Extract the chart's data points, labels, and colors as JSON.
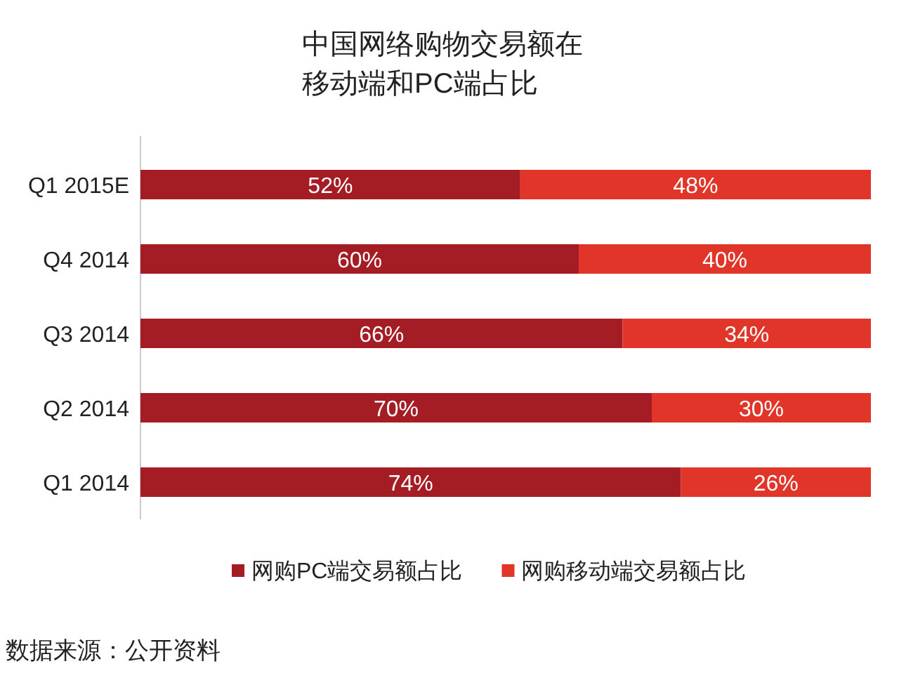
{
  "chart_data": {
    "type": "bar",
    "orientation": "horizontal",
    "stacked": true,
    "title": "中国网络购物交易额在移动端和PC端占比",
    "categories": [
      "Q1 2015E",
      "Q4 2014",
      "Q3 2014",
      "Q2 2014",
      "Q1 2014"
    ],
    "series": [
      {
        "name": "网购PC端交易额占比",
        "color": "#a51d24",
        "values": [
          52,
          60,
          66,
          70,
          74
        ],
        "value_labels": [
          "52%",
          "60%",
          "66%",
          "70%",
          "74%"
        ]
      },
      {
        "name": "网购移动端交易额占比",
        "color": "#e2352a",
        "values": [
          48,
          40,
          34,
          30,
          26
        ],
        "value_labels": [
          "48%",
          "40%",
          "34%",
          "30%",
          "26%"
        ]
      }
    ],
    "legend": "bottom",
    "annotations": [
      "数据来源：公开资料"
    ]
  }
}
